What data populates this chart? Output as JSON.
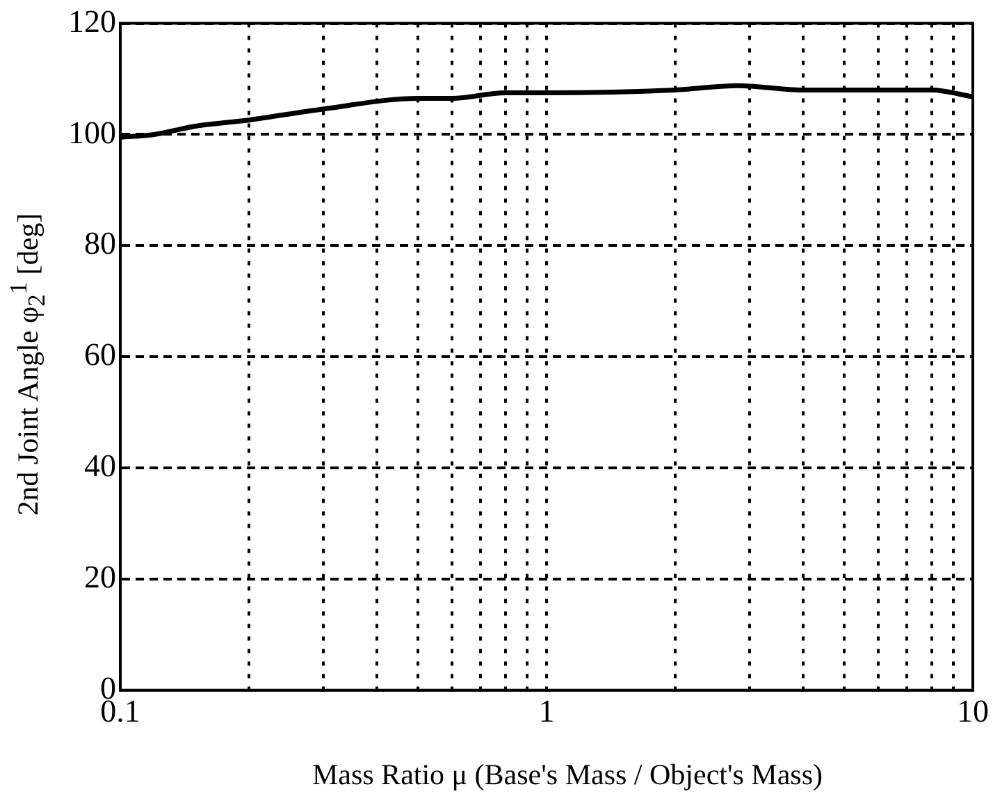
{
  "chart_data": {
    "type": "line",
    "xlabel": "Mass Ratio μ (Base's Mass / Object's Mass)",
    "ylabel": "2nd Joint Angle φ$_{2}$$^{1}$ [deg]",
    "log": "x",
    "grid": true,
    "marker": "none",
    "line_style": "solid",
    "x": [
      0.1,
      0.12,
      0.15,
      0.2,
      0.3,
      0.5,
      0.6,
      0.8,
      1,
      2,
      2.8,
      4,
      8,
      10
    ],
    "series": [
      {
        "color": "#000000",
        "values": [
          99.5,
          100,
          101.5,
          102.6,
          104.6,
          106.5,
          106.5,
          107.5,
          107.5,
          108,
          108.8,
          108,
          108,
          106.8
        ]
      }
    ],
    "xlim": [
      0.1,
      10
    ],
    "xticks": [
      0.1,
      {
        "value": 0.2,
        "label": null
      },
      {
        "value": 0.3,
        "label": null
      },
      {
        "value": 0.4,
        "label": null
      },
      {
        "value": 0.5,
        "label": null
      },
      {
        "value": 0.6,
        "label": null
      },
      {
        "value": 0.7,
        "label": null
      },
      {
        "value": 0.8,
        "label": null
      },
      {
        "value": 0.9,
        "label": null
      },
      1,
      {
        "value": 2,
        "label": null
      },
      {
        "value": 3,
        "label": null
      },
      {
        "value": 4,
        "label": null
      },
      {
        "value": 5,
        "label": null
      },
      {
        "value": 6,
        "label": null
      },
      {
        "value": 7,
        "label": null
      },
      {
        "value": 8,
        "label": null
      },
      {
        "value": 9,
        "label": null
      },
      10
    ],
    "ylim": [
      0,
      120
    ],
    "yticks": [
      0,
      20,
      40,
      60,
      80,
      100,
      120
    ]
  }
}
